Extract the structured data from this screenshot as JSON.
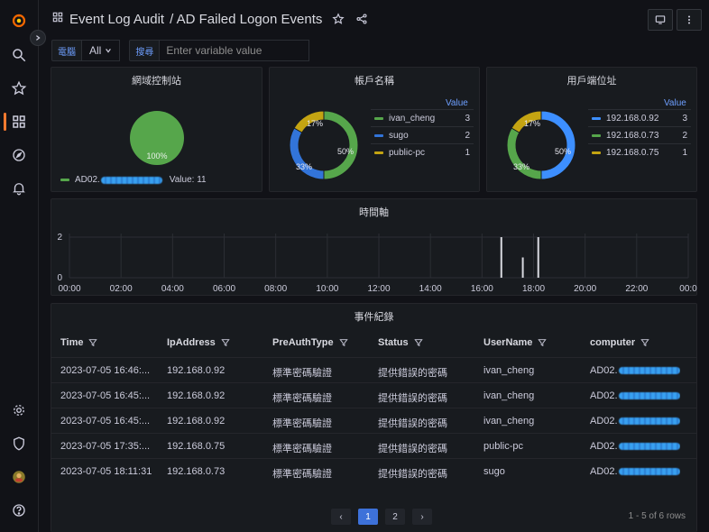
{
  "dashboard": {
    "title": "Event Log Audit",
    "subtitle": "/ AD Failed Logon Events"
  },
  "icons": {
    "logo": "grafana-logo-icon",
    "search": "search-icon",
    "starred": "star-icon",
    "dashboards": "dashboards-grid-icon",
    "explore": "compass-icon",
    "alerting": "bell-icon",
    "config": "gear-icon",
    "admin": "shield-icon",
    "profile": "avatar",
    "help": "help-icon"
  },
  "variables": {
    "computer_label": "電腦",
    "computer_value": "All",
    "search_label": "搜尋",
    "search_placeholder": "Enter variable value"
  },
  "panels": {
    "dc": {
      "title": "網域控制站",
      "slice_label": "100%",
      "legend_name": "AD02.",
      "legend_value": "Value: 11",
      "color": "#56a64b"
    },
    "account": {
      "title": "帳戶名稱",
      "value_header": "Value",
      "slices": [
        {
          "name": "ivan_cheng",
          "value": 3,
          "pct": "50%",
          "color": "#56a64b"
        },
        {
          "name": "sugo",
          "value": 2,
          "pct": "33%",
          "color": "#3274d9"
        },
        {
          "name": "public-pc",
          "value": 1,
          "pct": "17%",
          "color": "#c4a412"
        }
      ]
    },
    "client": {
      "title": "用戶端位址",
      "value_header": "Value",
      "slices": [
        {
          "name": "192.168.0.92",
          "value": 3,
          "pct": "50%",
          "color": "#3d8fff"
        },
        {
          "name": "192.168.0.73",
          "value": 2,
          "pct": "33%",
          "color": "#56a64b"
        },
        {
          "name": "192.168.0.75",
          "value": 1,
          "pct": "17%",
          "color": "#c4a412"
        }
      ]
    },
    "timeline": {
      "title": "時間軸",
      "y_ticks": [
        "2",
        "0"
      ],
      "x_ticks": [
        "00:00",
        "02:00",
        "04:00",
        "06:00",
        "08:00",
        "10:00",
        "12:00",
        "14:00",
        "16:00",
        "18:00",
        "20:00",
        "22:00",
        "00:0"
      ]
    },
    "events": {
      "title": "事件紀錄",
      "columns": [
        "Time",
        "IpAddress",
        "PreAuthType",
        "Status",
        "UserName",
        "computer"
      ],
      "rows": [
        [
          "2023-07-05 16:46:...",
          "192.168.0.92",
          "標準密碼驗證",
          "提供錯誤的密碼",
          "ivan_cheng",
          "AD02."
        ],
        [
          "2023-07-05 16:45:...",
          "192.168.0.92",
          "標準密碼驗證",
          "提供錯誤的密碼",
          "ivan_cheng",
          "AD02."
        ],
        [
          "2023-07-05 16:45:...",
          "192.168.0.92",
          "標準密碼驗證",
          "提供錯誤的密碼",
          "ivan_cheng",
          "AD02."
        ],
        [
          "2023-07-05 17:35:...",
          "192.168.0.75",
          "標準密碼驗證",
          "提供錯誤的密碼",
          "public-pc",
          "AD02."
        ],
        [
          "2023-07-05 18:11:31",
          "192.168.0.73",
          "標準密碼驗證",
          "提供錯誤的密碼",
          "sugo",
          "AD02."
        ]
      ],
      "pager": {
        "prev": "‹",
        "pages": [
          "1",
          "2"
        ],
        "next": "›",
        "info": "1 - 5 of 6 rows"
      }
    }
  },
  "chart_data": [
    {
      "type": "pie",
      "title": "網域控制站",
      "labels": [
        "AD02."
      ],
      "values": [
        11
      ],
      "colors": [
        "#56a64b"
      ]
    },
    {
      "type": "pie",
      "title": "帳戶名稱",
      "labels": [
        "ivan_cheng",
        "sugo",
        "public-pc"
      ],
      "values": [
        3,
        2,
        1
      ],
      "colors": [
        "#56a64b",
        "#3274d9",
        "#c4a412"
      ]
    },
    {
      "type": "pie",
      "title": "用戶端位址",
      "labels": [
        "192.168.0.92",
        "192.168.0.73",
        "192.168.0.75"
      ],
      "values": [
        3,
        2,
        1
      ],
      "colors": [
        "#3d8fff",
        "#56a64b",
        "#c4a412"
      ]
    },
    {
      "type": "bar",
      "title": "時間軸",
      "x_range_hours": [
        0,
        24
      ],
      "ylim": [
        0,
        2
      ],
      "bars": [
        {
          "x": "16:45",
          "value": 2
        },
        {
          "x": "17:35",
          "value": 1
        },
        {
          "x": "18:11",
          "value": 2
        }
      ]
    }
  ]
}
